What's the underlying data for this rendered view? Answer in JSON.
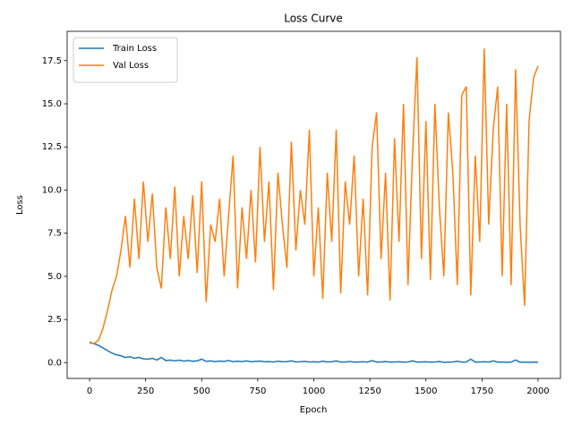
{
  "chart_data": {
    "type": "line",
    "title": "Loss Curve",
    "x_label": "Epoch",
    "y_label": "Loss",
    "x": [
      0,
      20,
      40,
      60,
      80,
      100,
      120,
      140,
      160,
      180,
      200,
      220,
      240,
      260,
      280,
      300,
      320,
      340,
      360,
      380,
      400,
      420,
      440,
      460,
      480,
      500,
      520,
      540,
      560,
      580,
      600,
      620,
      640,
      660,
      680,
      700,
      720,
      740,
      760,
      780,
      800,
      820,
      840,
      860,
      880,
      900,
      920,
      940,
      960,
      980,
      1000,
      1020,
      1040,
      1060,
      1080,
      1100,
      1120,
      1140,
      1160,
      1180,
      1200,
      1220,
      1240,
      1260,
      1280,
      1300,
      1320,
      1340,
      1360,
      1380,
      1400,
      1420,
      1440,
      1460,
      1480,
      1500,
      1520,
      1540,
      1560,
      1580,
      1600,
      1620,
      1640,
      1660,
      1680,
      1700,
      1720,
      1740,
      1760,
      1780,
      1800,
      1820,
      1840,
      1860,
      1880,
      1900,
      1920,
      1940,
      1960,
      1980,
      2000
    ],
    "series": [
      {
        "name": "Train Loss",
        "color": "#1f77b4",
        "values": [
          1.15,
          1.1,
          1.0,
          0.85,
          0.7,
          0.55,
          0.45,
          0.4,
          0.3,
          0.35,
          0.25,
          0.3,
          0.22,
          0.2,
          0.25,
          0.15,
          0.3,
          0.12,
          0.15,
          0.1,
          0.14,
          0.09,
          0.12,
          0.08,
          0.1,
          0.2,
          0.07,
          0.1,
          0.06,
          0.09,
          0.07,
          0.12,
          0.05,
          0.08,
          0.06,
          0.1,
          0.05,
          0.07,
          0.09,
          0.05,
          0.06,
          0.04,
          0.08,
          0.05,
          0.06,
          0.1,
          0.04,
          0.05,
          0.07,
          0.04,
          0.05,
          0.03,
          0.08,
          0.04,
          0.05,
          0.1,
          0.03,
          0.04,
          0.06,
          0.03,
          0.04,
          0.05,
          0.03,
          0.12,
          0.03,
          0.04,
          0.06,
          0.03,
          0.04,
          0.05,
          0.03,
          0.04,
          0.1,
          0.03,
          0.04,
          0.05,
          0.03,
          0.04,
          0.06,
          0.02,
          0.03,
          0.04,
          0.08,
          0.03,
          0.04,
          0.2,
          0.03,
          0.04,
          0.05,
          0.03,
          0.1,
          0.03,
          0.04,
          0.02,
          0.03,
          0.15,
          0.02,
          0.03,
          0.02,
          0.03,
          0.02
        ]
      },
      {
        "name": "Val Loss",
        "color": "#ff7f0e",
        "values": [
          1.2,
          1.1,
          1.3,
          2.0,
          3.0,
          4.2,
          5.0,
          6.5,
          8.5,
          5.5,
          9.5,
          6.0,
          10.5,
          7.0,
          9.8,
          5.5,
          4.3,
          9.0,
          6.0,
          10.2,
          5.0,
          8.5,
          6.0,
          9.7,
          5.2,
          10.5,
          3.5,
          8.0,
          7.0,
          9.5,
          5.0,
          8.5,
          12.0,
          4.3,
          9.0,
          6.0,
          10.0,
          5.8,
          12.5,
          7.0,
          10.5,
          4.2,
          11.0,
          8.0,
          5.5,
          12.8,
          6.5,
          10.0,
          8.0,
          13.5,
          5.0,
          9.0,
          3.7,
          11.0,
          7.0,
          13.5,
          4.0,
          10.5,
          8.0,
          12.0,
          5.0,
          9.5,
          3.9,
          12.5,
          14.5,
          6.0,
          11.0,
          3.6,
          13.0,
          7.0,
          15.0,
          4.5,
          12.0,
          17.7,
          6.0,
          14.0,
          4.8,
          15.0,
          9.0,
          5.0,
          14.5,
          11.0,
          4.5,
          15.5,
          16.0,
          3.9,
          12.0,
          7.0,
          18.2,
          8.0,
          13.5,
          16.0,
          5.0,
          15.0,
          4.5,
          17.0,
          8.0,
          3.3,
          14.0,
          16.5,
          17.2
        ]
      }
    ],
    "xlim": [
      -100,
      2100
    ],
    "xticks": [
      0,
      250,
      500,
      750,
      1000,
      1250,
      1500,
      1750,
      2000
    ],
    "ylim": [
      -0.915,
      19.2
    ],
    "yticks": [
      {
        "value": 0,
        "label": "0.0"
      },
      2.5,
      {
        "value": 5,
        "label": "5.0"
      },
      7.5,
      {
        "value": 10,
        "label": "10.0"
      },
      12.5,
      {
        "value": 15,
        "label": "15.0"
      },
      17.5
    ],
    "legend": "upper left"
  }
}
